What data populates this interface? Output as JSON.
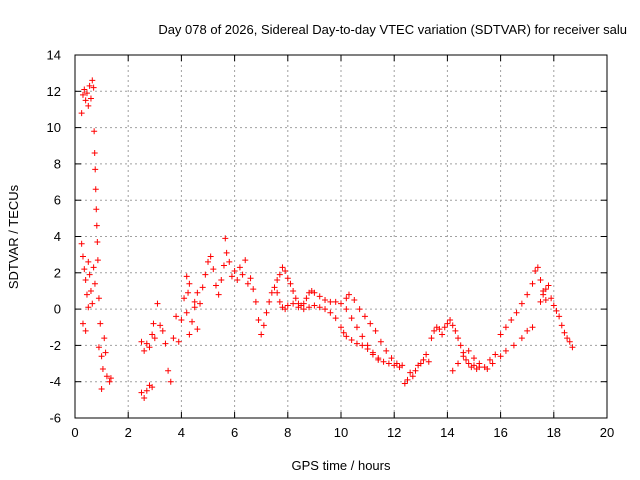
{
  "chart_data": {
    "type": "scatter",
    "title": "Day 078 of 2026, Sidereal Day-to-day VTEC variation (SDTVAR) for receiver salu",
    "xlabel": "GPS time / hours",
    "ylabel": "SDTVAR / TECUs",
    "xlim": [
      0,
      20
    ],
    "ylim": [
      -6,
      14
    ],
    "xticks": [
      "0",
      "2",
      "4",
      "6",
      "8",
      "10",
      "12",
      "14",
      "16",
      "18",
      "20"
    ],
    "yticks": [
      "-6",
      "-4",
      "-2",
      "0",
      "2",
      "4",
      "6",
      "8",
      "10",
      "12",
      "14"
    ],
    "grid": true,
    "marker": "+",
    "series": [
      {
        "name": "SDTVAR",
        "color": "#ff0000",
        "points": [
          [
            0.25,
            10.8
          ],
          [
            0.3,
            11.8
          ],
          [
            0.35,
            12.1
          ],
          [
            0.4,
            11.5
          ],
          [
            0.45,
            11.9
          ],
          [
            0.5,
            11.2
          ],
          [
            0.55,
            12.3
          ],
          [
            0.6,
            11.6
          ],
          [
            0.65,
            12.6
          ],
          [
            0.7,
            12.2
          ],
          [
            0.25,
            3.6
          ],
          [
            0.3,
            2.9
          ],
          [
            0.35,
            2.2
          ],
          [
            0.4,
            1.6
          ],
          [
            0.45,
            0.8
          ],
          [
            0.5,
            0.1
          ],
          [
            0.3,
            -0.8
          ],
          [
            0.4,
            -1.2
          ],
          [
            0.5,
            2.6
          ],
          [
            0.55,
            1.9
          ],
          [
            0.6,
            1.0
          ],
          [
            0.65,
            0.3
          ],
          [
            0.7,
            2.3
          ],
          [
            0.75,
            1.4
          ],
          [
            0.72,
            9.8
          ],
          [
            0.74,
            8.6
          ],
          [
            0.76,
            7.7
          ],
          [
            0.78,
            6.6
          ],
          [
            0.8,
            5.5
          ],
          [
            0.82,
            4.6
          ],
          [
            0.84,
            3.7
          ],
          [
            0.86,
            2.7
          ],
          [
            0.9,
            0.6
          ],
          [
            0.95,
            -0.8
          ],
          [
            0.9,
            -2.1
          ],
          [
            1.0,
            -2.6
          ],
          [
            1.0,
            -4.4
          ],
          [
            1.05,
            -3.3
          ],
          [
            1.1,
            -1.6
          ],
          [
            1.15,
            -2.4
          ],
          [
            1.2,
            -3.7
          ],
          [
            1.3,
            -4.0
          ],
          [
            1.35,
            -3.8
          ],
          [
            2.5,
            -4.6
          ],
          [
            2.6,
            -4.9
          ],
          [
            2.7,
            -4.5
          ],
          [
            2.8,
            -4.2
          ],
          [
            2.9,
            -4.3
          ],
          [
            2.5,
            -1.8
          ],
          [
            2.6,
            -2.3
          ],
          [
            2.7,
            -1.9
          ],
          [
            2.8,
            -2.1
          ],
          [
            2.9,
            -1.4
          ],
          [
            2.95,
            -0.8
          ],
          [
            3.0,
            -1.6
          ],
          [
            3.1,
            0.3
          ],
          [
            3.2,
            -0.9
          ],
          [
            3.3,
            -1.2
          ],
          [
            3.4,
            -1.9
          ],
          [
            3.5,
            -3.4
          ],
          [
            3.6,
            -4.0
          ],
          [
            3.7,
            -1.6
          ],
          [
            3.8,
            -0.4
          ],
          [
            3.9,
            -1.8
          ],
          [
            4.0,
            -0.6
          ],
          [
            4.1,
            0.6
          ],
          [
            4.2,
            -0.2
          ],
          [
            4.3,
            -1.4
          ],
          [
            4.4,
            -0.7
          ],
          [
            4.5,
            0.1
          ],
          [
            4.6,
            0.9
          ],
          [
            4.2,
            1.8
          ],
          [
            4.25,
            0.9
          ],
          [
            4.3,
            1.4
          ],
          [
            4.5,
            0.4
          ],
          [
            4.6,
            -1.1
          ],
          [
            4.7,
            0.3
          ],
          [
            4.8,
            1.2
          ],
          [
            4.9,
            1.9
          ],
          [
            5.0,
            2.6
          ],
          [
            5.1,
            2.9
          ],
          [
            5.2,
            2.2
          ],
          [
            5.3,
            1.3
          ],
          [
            5.4,
            0.8
          ],
          [
            5.5,
            1.6
          ],
          [
            5.6,
            2.4
          ],
          [
            5.65,
            3.9
          ],
          [
            5.7,
            3.1
          ],
          [
            5.8,
            2.6
          ],
          [
            5.9,
            1.8
          ],
          [
            6.0,
            2.1
          ],
          [
            6.1,
            1.6
          ],
          [
            6.2,
            2.3
          ],
          [
            6.3,
            1.9
          ],
          [
            6.4,
            2.7
          ],
          [
            6.5,
            1.4
          ],
          [
            6.6,
            1.7
          ],
          [
            6.7,
            1.1
          ],
          [
            6.8,
            0.4
          ],
          [
            6.9,
            -0.6
          ],
          [
            7.0,
            -1.4
          ],
          [
            7.1,
            -0.9
          ],
          [
            7.2,
            -0.2
          ],
          [
            7.3,
            0.4
          ],
          [
            7.4,
            0.9
          ],
          [
            7.5,
            1.2
          ],
          [
            7.6,
            1.6
          ],
          [
            7.7,
            1.9
          ],
          [
            7.8,
            2.3
          ],
          [
            7.9,
            2.1
          ],
          [
            8.0,
            1.7
          ],
          [
            8.1,
            1.4
          ],
          [
            8.2,
            1.0
          ],
          [
            8.3,
            0.6
          ],
          [
            8.4,
            0.3
          ],
          [
            8.5,
            0.2
          ],
          [
            8.6,
            0.3
          ],
          [
            8.7,
            0.6
          ],
          [
            8.8,
            0.9
          ],
          [
            8.9,
            1.0
          ],
          [
            9.0,
            0.9
          ],
          [
            7.6,
            0.9
          ],
          [
            7.7,
            0.4
          ],
          [
            7.8,
            0.1
          ],
          [
            7.9,
            0.0
          ],
          [
            8.0,
            0.2
          ],
          [
            8.2,
            0.3
          ],
          [
            8.4,
            0.1
          ],
          [
            8.6,
            0.0
          ],
          [
            8.8,
            0.1
          ],
          [
            9.0,
            0.2
          ],
          [
            9.2,
            0.1
          ],
          [
            9.4,
            0.0
          ],
          [
            9.6,
            -0.2
          ],
          [
            9.8,
            -0.5
          ],
          [
            10.0,
            -1.0
          ],
          [
            9.2,
            0.7
          ],
          [
            9.4,
            0.5
          ],
          [
            9.6,
            0.4
          ],
          [
            9.8,
            0.4
          ],
          [
            10.0,
            0.3
          ],
          [
            10.2,
            0.0
          ],
          [
            10.4,
            -0.5
          ],
          [
            10.6,
            -1.0
          ],
          [
            10.8,
            -1.5
          ],
          [
            11.0,
            -2.0
          ],
          [
            11.2,
            -2.4
          ],
          [
            11.4,
            -2.8
          ],
          [
            10.2,
            0.6
          ],
          [
            10.3,
            0.8
          ],
          [
            10.5,
            0.5
          ],
          [
            10.7,
            0.0
          ],
          [
            10.9,
            -0.4
          ],
          [
            11.1,
            -0.8
          ],
          [
            11.3,
            -1.2
          ],
          [
            11.5,
            -1.8
          ],
          [
            11.7,
            -2.3
          ],
          [
            11.9,
            -2.7
          ],
          [
            12.1,
            -3.0
          ],
          [
            12.3,
            -3.1
          ],
          [
            10.1,
            -1.3
          ],
          [
            10.2,
            -1.5
          ],
          [
            10.4,
            -1.7
          ],
          [
            10.6,
            -1.9
          ],
          [
            10.8,
            -2.0
          ],
          [
            11.0,
            -2.2
          ],
          [
            11.2,
            -2.5
          ],
          [
            11.4,
            -2.7
          ],
          [
            11.6,
            -2.9
          ],
          [
            11.8,
            -3.0
          ],
          [
            12.0,
            -3.1
          ],
          [
            12.2,
            -3.2
          ],
          [
            12.4,
            -4.1
          ],
          [
            12.5,
            -3.9
          ],
          [
            12.6,
            -3.5
          ],
          [
            12.7,
            -3.7
          ],
          [
            12.8,
            -3.4
          ],
          [
            12.9,
            -3.1
          ],
          [
            13.0,
            -3.0
          ],
          [
            13.1,
            -2.8
          ],
          [
            13.2,
            -2.5
          ],
          [
            13.3,
            -2.9
          ],
          [
            13.4,
            -1.6
          ],
          [
            13.5,
            -1.2
          ],
          [
            13.6,
            -1.0
          ],
          [
            13.7,
            -1.1
          ],
          [
            13.8,
            -1.4
          ],
          [
            13.9,
            -1.0
          ],
          [
            14.0,
            -0.8
          ],
          [
            14.1,
            -0.6
          ],
          [
            14.2,
            -0.9
          ],
          [
            14.3,
            -1.2
          ],
          [
            14.4,
            -1.6
          ],
          [
            14.5,
            -2.0
          ],
          [
            14.6,
            -2.4
          ],
          [
            14.7,
            -2.8
          ],
          [
            14.8,
            -3.0
          ],
          [
            14.9,
            -3.2
          ],
          [
            15.0,
            -3.1
          ],
          [
            15.1,
            -3.3
          ],
          [
            15.2,
            -3.0
          ],
          [
            15.4,
            -3.2
          ],
          [
            15.6,
            -2.8
          ],
          [
            15.8,
            -2.5
          ],
          [
            14.2,
            -3.4
          ],
          [
            14.4,
            -3.0
          ],
          [
            14.6,
            -2.6
          ],
          [
            14.8,
            -2.3
          ],
          [
            15.0,
            -2.7
          ],
          [
            15.2,
            -3.2
          ],
          [
            15.5,
            -3.3
          ],
          [
            15.7,
            -3.0
          ],
          [
            16.0,
            -2.6
          ],
          [
            16.2,
            -2.3
          ],
          [
            16.5,
            -2.0
          ],
          [
            16.8,
            -1.6
          ],
          [
            17.0,
            -1.2
          ],
          [
            17.2,
            -1.0
          ],
          [
            16.0,
            -1.4
          ],
          [
            16.2,
            -1.0
          ],
          [
            16.4,
            -0.6
          ],
          [
            16.6,
            -0.2
          ],
          [
            16.8,
            0.3
          ],
          [
            17.0,
            0.8
          ],
          [
            17.2,
            1.4
          ],
          [
            17.3,
            2.1
          ],
          [
            17.4,
            2.3
          ],
          [
            17.5,
            1.6
          ],
          [
            17.6,
            0.8
          ],
          [
            17.7,
            0.5
          ],
          [
            17.5,
            0.4
          ],
          [
            17.6,
            1.0
          ],
          [
            17.7,
            1.1
          ],
          [
            17.8,
            1.3
          ],
          [
            17.9,
            0.6
          ],
          [
            18.0,
            0.2
          ],
          [
            18.1,
            -0.1
          ],
          [
            18.2,
            -0.4
          ],
          [
            18.3,
            -0.9
          ],
          [
            18.4,
            -1.3
          ],
          [
            18.5,
            -1.6
          ],
          [
            18.6,
            -1.8
          ],
          [
            18.7,
            -2.1
          ]
        ]
      }
    ]
  }
}
